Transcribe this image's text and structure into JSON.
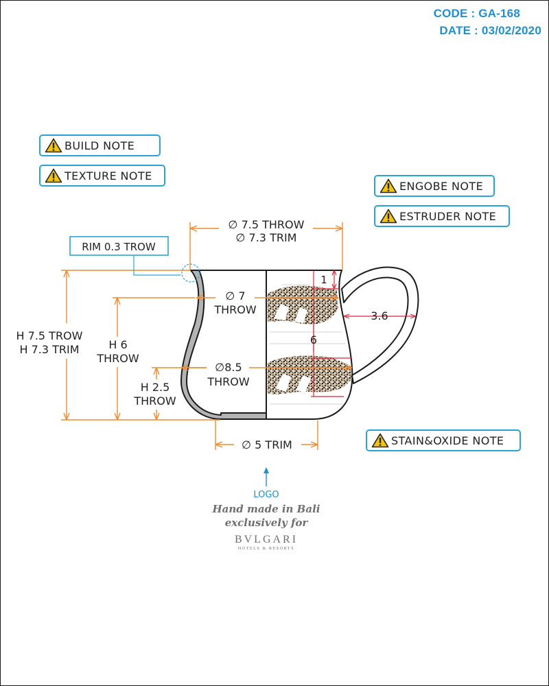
{
  "header": {
    "code": "CODE : GA-168",
    "date": "DATE : 03/02/2020"
  },
  "notes": {
    "build": "BUILD NOTE",
    "texture": "TEXTURE NOTE",
    "engobe": "ENGOBE NOTE",
    "estruder": "ESTRUDER NOTE",
    "stain": "STAIN&OXIDE NOTE"
  },
  "dimensions": {
    "rim": "RIM 0.3 TROW",
    "diameter_top_1": "∅ 7.5 THROW",
    "diameter_top_2": "∅ 7.3 TRIM",
    "height_total_1": "H 7.5 TROW",
    "height_total_2": "H 7.3 TRIM",
    "height_6_1": "H 6",
    "height_6_2": "THROW",
    "height_25_1": "H 2.5",
    "height_25_2": "THROW",
    "diameter_7_1": "∅ 7",
    "diameter_7_2": "THROW",
    "diameter_85_1": "∅8.5",
    "diameter_85_2": "THROW",
    "diameter_base": "∅ 5 TRIM",
    "handle": "3.6",
    "band_top": "1",
    "band_gap": "6"
  },
  "logo": {
    "label": "LOGO",
    "line1": "Hand made in Bali",
    "line2": "exclusively for",
    "brand": "BVLGARI",
    "sub": "HOTELS & RESORTS"
  },
  "colors": {
    "accent": "#29a3d6",
    "dimension": "#f08a2c",
    "band_dimension": "#d8283c",
    "section": "#b3b3b3"
  },
  "icons": {
    "note": "warning-triangle-icon"
  }
}
